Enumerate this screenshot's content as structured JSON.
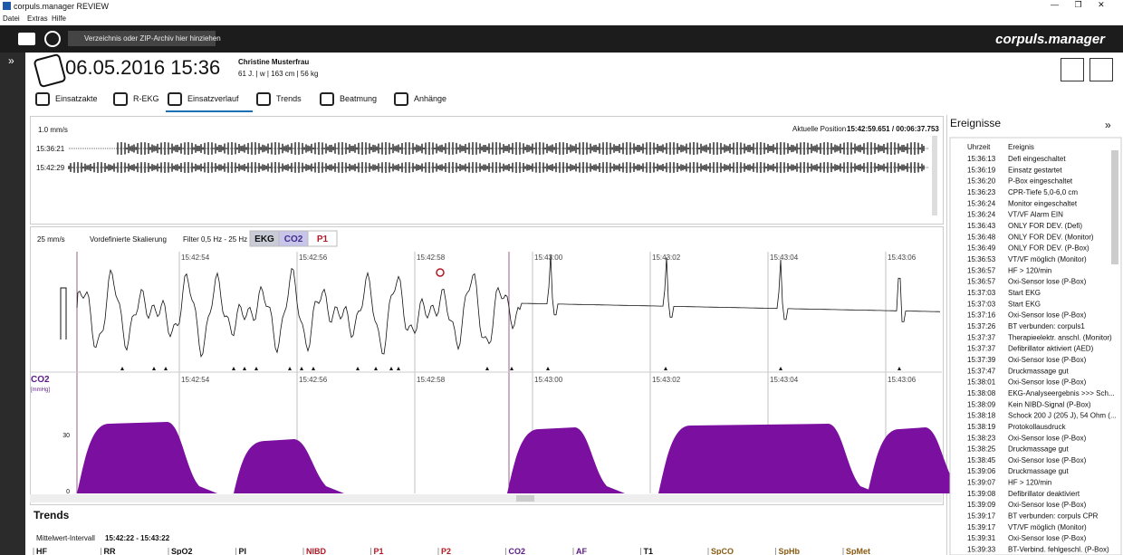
{
  "window": {
    "title": "corpuls.manager REVIEW",
    "menu": [
      "Datei",
      "Extras",
      "Hilfe"
    ]
  },
  "toolbar": {
    "drop_hint": "Verzeichnis oder ZIP-Archiv hier hinziehen",
    "brand": "corpuls.manager"
  },
  "header": {
    "date": "06.05.2016 15:36",
    "patient_name": "Christine Musterfrau",
    "patient_info": "61 J. | w | 163 cm | 56 kg"
  },
  "tabs": [
    "Einsatzakte",
    "R-EKG",
    "Einsatzverlauf",
    "Trends",
    "Beatmung",
    "Anhänge"
  ],
  "overview": {
    "speed": "1.0 mm/s",
    "position_label": "Aktuelle Position",
    "position_value": "15:42:59.651 / 00:06:37.753",
    "rows": [
      "15:36:21",
      "15:42:29"
    ]
  },
  "wave": {
    "speed": "25 mm/s",
    "scaling": "Vordefinierte Skalierung",
    "filter": "Filter 0,5 Hz - 25 Hz",
    "channels": [
      "EKG",
      "CO2",
      "P1"
    ],
    "times": [
      "15:42:54",
      "15:42:56",
      "15:42:58",
      "15:43:00",
      "15:43:02",
      "15:43:04",
      "15:43:06"
    ],
    "co2_label": "CO2",
    "co2_unit": "[mmHg]",
    "co2_ticks": [
      "30",
      "0"
    ]
  },
  "trends": {
    "title": "Trends",
    "interval_label": "Mittelwert-Intervall",
    "interval_value": "15:42:22 - 15:43:22",
    "columns": [
      "HF",
      "RR",
      "SpO2",
      "PI",
      "NIBD",
      "P1",
      "P2",
      "CO2",
      "AF",
      "T1",
      "SpCO",
      "SpHb",
      "SpMet"
    ]
  },
  "events": {
    "title": "Ereignisse",
    "headers": [
      "Uhrzeit",
      "Ereignis"
    ],
    "rows": [
      [
        "15:36:13",
        "Defi eingeschaltet"
      ],
      [
        "15:36:19",
        "Einsatz gestartet"
      ],
      [
        "15:36:20",
        "P-Box eingeschaltet"
      ],
      [
        "15:36:23",
        "CPR-Tiefe 5,0-6,0 cm"
      ],
      [
        "15:36:24",
        "Monitor eingeschaltet"
      ],
      [
        "15:36:24",
        "VT/VF Alarm EIN"
      ],
      [
        "15:36:43",
        "ONLY FOR DEV. (Defi)"
      ],
      [
        "15:36:48",
        "ONLY FOR DEV. (Monitor)"
      ],
      [
        "15:36:49",
        "ONLY FOR DEV. (P-Box)"
      ],
      [
        "15:36:53",
        "VT/VF möglich (Monitor)"
      ],
      [
        "15:36:57",
        "HF > 120/min"
      ],
      [
        "15:36:57",
        "Oxi-Sensor lose (P-Box)"
      ],
      [
        "15:37:03",
        "Start EKG"
      ],
      [
        "15:37:03",
        "Start EKG"
      ],
      [
        "15:37:16",
        "Oxi-Sensor lose (P-Box)"
      ],
      [
        "15:37:26",
        "BT verbunden: corpuls1"
      ],
      [
        "15:37:37",
        "Therapieelektr. anschl. (Monitor)"
      ],
      [
        "15:37:37",
        "Defibrillator aktiviert (AED)"
      ],
      [
        "15:37:39",
        "Oxi-Sensor lose (P-Box)"
      ],
      [
        "15:37:47",
        "Druckmassage gut"
      ],
      [
        "15:38:01",
        "Oxi-Sensor lose (P-Box)"
      ],
      [
        "15:38:08",
        "EKG-Analyseergebnis >>> Sch..."
      ],
      [
        "15:38:09",
        "Kein NIBD-Signal (P-Box)"
      ],
      [
        "15:38:18",
        "Schock 200 J (205 J), 54 Ohm (..."
      ],
      [
        "15:38:19",
        "Protokollausdruck"
      ],
      [
        "15:38:23",
        "Oxi-Sensor lose (P-Box)"
      ],
      [
        "15:38:25",
        "Druckmassage gut"
      ],
      [
        "15:38:45",
        "Oxi-Sensor lose (P-Box)"
      ],
      [
        "15:39:06",
        "Druckmassage gut"
      ],
      [
        "15:39:07",
        "HF > 120/min"
      ],
      [
        "15:39:08",
        "Defibrillator deaktiviert"
      ],
      [
        "15:39:09",
        "Oxi-Sensor lose (P-Box)"
      ],
      [
        "15:39:17",
        "BT verbunden: corpuls CPR"
      ],
      [
        "15:39:17",
        "VT/VF möglich (Monitor)"
      ],
      [
        "15:39:31",
        "Oxi-Sensor lose (P-Box)"
      ],
      [
        "15:39:33",
        "BT-Verbind. fehlgeschl. (P-Box)"
      ]
    ]
  }
}
